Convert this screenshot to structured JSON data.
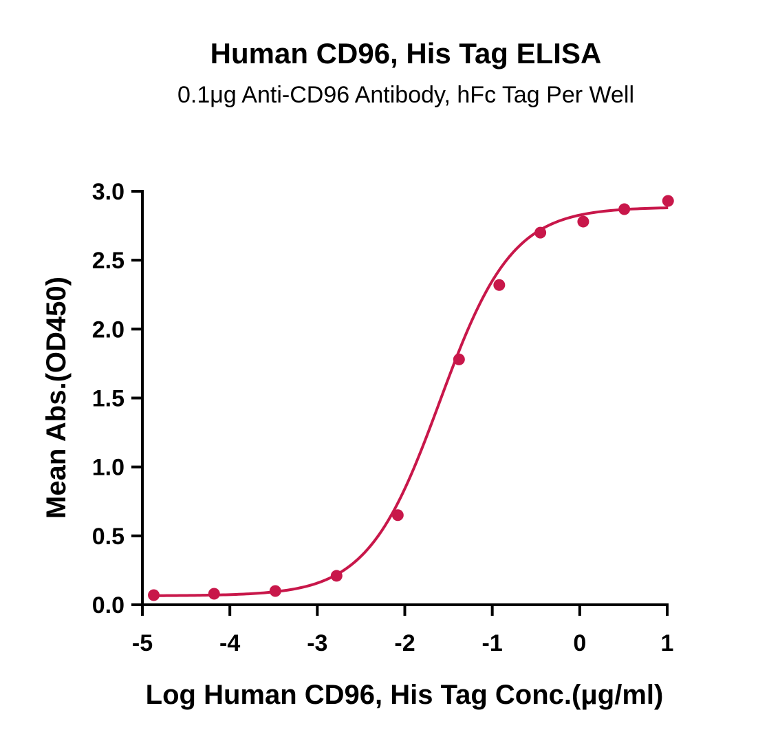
{
  "chart_data": {
    "type": "scatter",
    "title": "Human CD96, His Tag ELISA",
    "subtitle": "0.1μg Anti-CD96 Antibody, hFc Tag Per Well",
    "xlabel": "Log Human CD96, His Tag Conc.(μg/ml)",
    "ylabel": "Mean Abs.(OD450)",
    "xlim": [
      -5,
      1
    ],
    "ylim": [
      0,
      3
    ],
    "x_ticks": [
      "-5",
      "-4",
      "-3",
      "-2",
      "-1",
      "0",
      "1"
    ],
    "y_ticks": [
      "0.0",
      "0.5",
      "1.0",
      "1.5",
      "2.0",
      "2.5",
      "3.0"
    ],
    "grid": false,
    "color": "#c8174a",
    "series": [
      {
        "points": [
          {
            "x": -4.87,
            "y": 0.07
          },
          {
            "x": -4.18,
            "y": 0.08
          },
          {
            "x": -3.48,
            "y": 0.1
          },
          {
            "x": -2.78,
            "y": 0.21
          },
          {
            "x": -2.08,
            "y": 0.65
          },
          {
            "x": -1.38,
            "y": 1.78
          },
          {
            "x": -0.92,
            "y": 2.32
          },
          {
            "x": -0.45,
            "y": 2.7
          },
          {
            "x": 0.04,
            "y": 2.78
          },
          {
            "x": 0.51,
            "y": 2.87
          },
          {
            "x": 1.01,
            "y": 2.93
          }
        ],
        "fit": {
          "model": "4PL",
          "bottom": 0.065,
          "top": 2.885,
          "log_ec50": -1.6,
          "hill_slope": 1.05
        }
      }
    ]
  }
}
